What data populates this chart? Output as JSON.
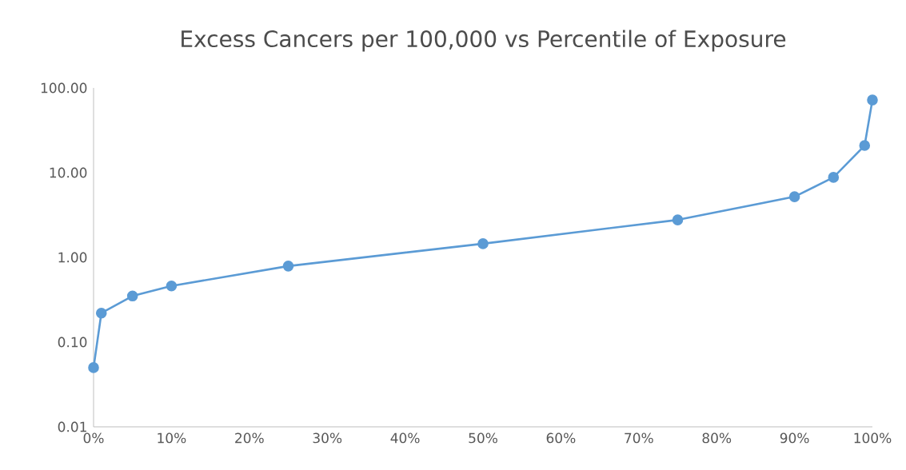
{
  "chart_data": {
    "type": "line",
    "title": "Excess Cancers per 100,000 vs Percentile of Exposure",
    "x": [
      0,
      1,
      5,
      10,
      25,
      50,
      75,
      90,
      95,
      99,
      100
    ],
    "series": [
      {
        "color": "#5b9bd5",
        "values": [
          0.05,
          0.22,
          0.35,
          0.46,
          0.79,
          1.45,
          2.77,
          5.2,
          8.8,
          20.9,
          72
        ]
      }
    ],
    "log": "y",
    "marker": "circle",
    "line_style": "solid",
    "xlim": [
      0,
      100
    ],
    "xticks": [
      {
        "value": 0,
        "label": "0%"
      },
      {
        "value": 10,
        "label": "10%"
      },
      {
        "value": 20,
        "label": "20%"
      },
      {
        "value": 30,
        "label": "30%"
      },
      {
        "value": 40,
        "label": "40%"
      },
      {
        "value": 50,
        "label": "50%"
      },
      {
        "value": 60,
        "label": "60%"
      },
      {
        "value": 70,
        "label": "70%"
      },
      {
        "value": 80,
        "label": "80%"
      },
      {
        "value": 90,
        "label": "90%"
      },
      {
        "value": 100,
        "label": "100%"
      }
    ],
    "ylim": [
      0.01,
      100
    ],
    "yticks": [
      {
        "value": 0.01,
        "label": "0.01"
      },
      {
        "value": 0.1,
        "label": "0.10"
      },
      {
        "value": 1,
        "label": "1.00"
      },
      {
        "value": 10,
        "label": "10.00"
      },
      {
        "value": 100,
        "label": "100.00"
      }
    ]
  }
}
